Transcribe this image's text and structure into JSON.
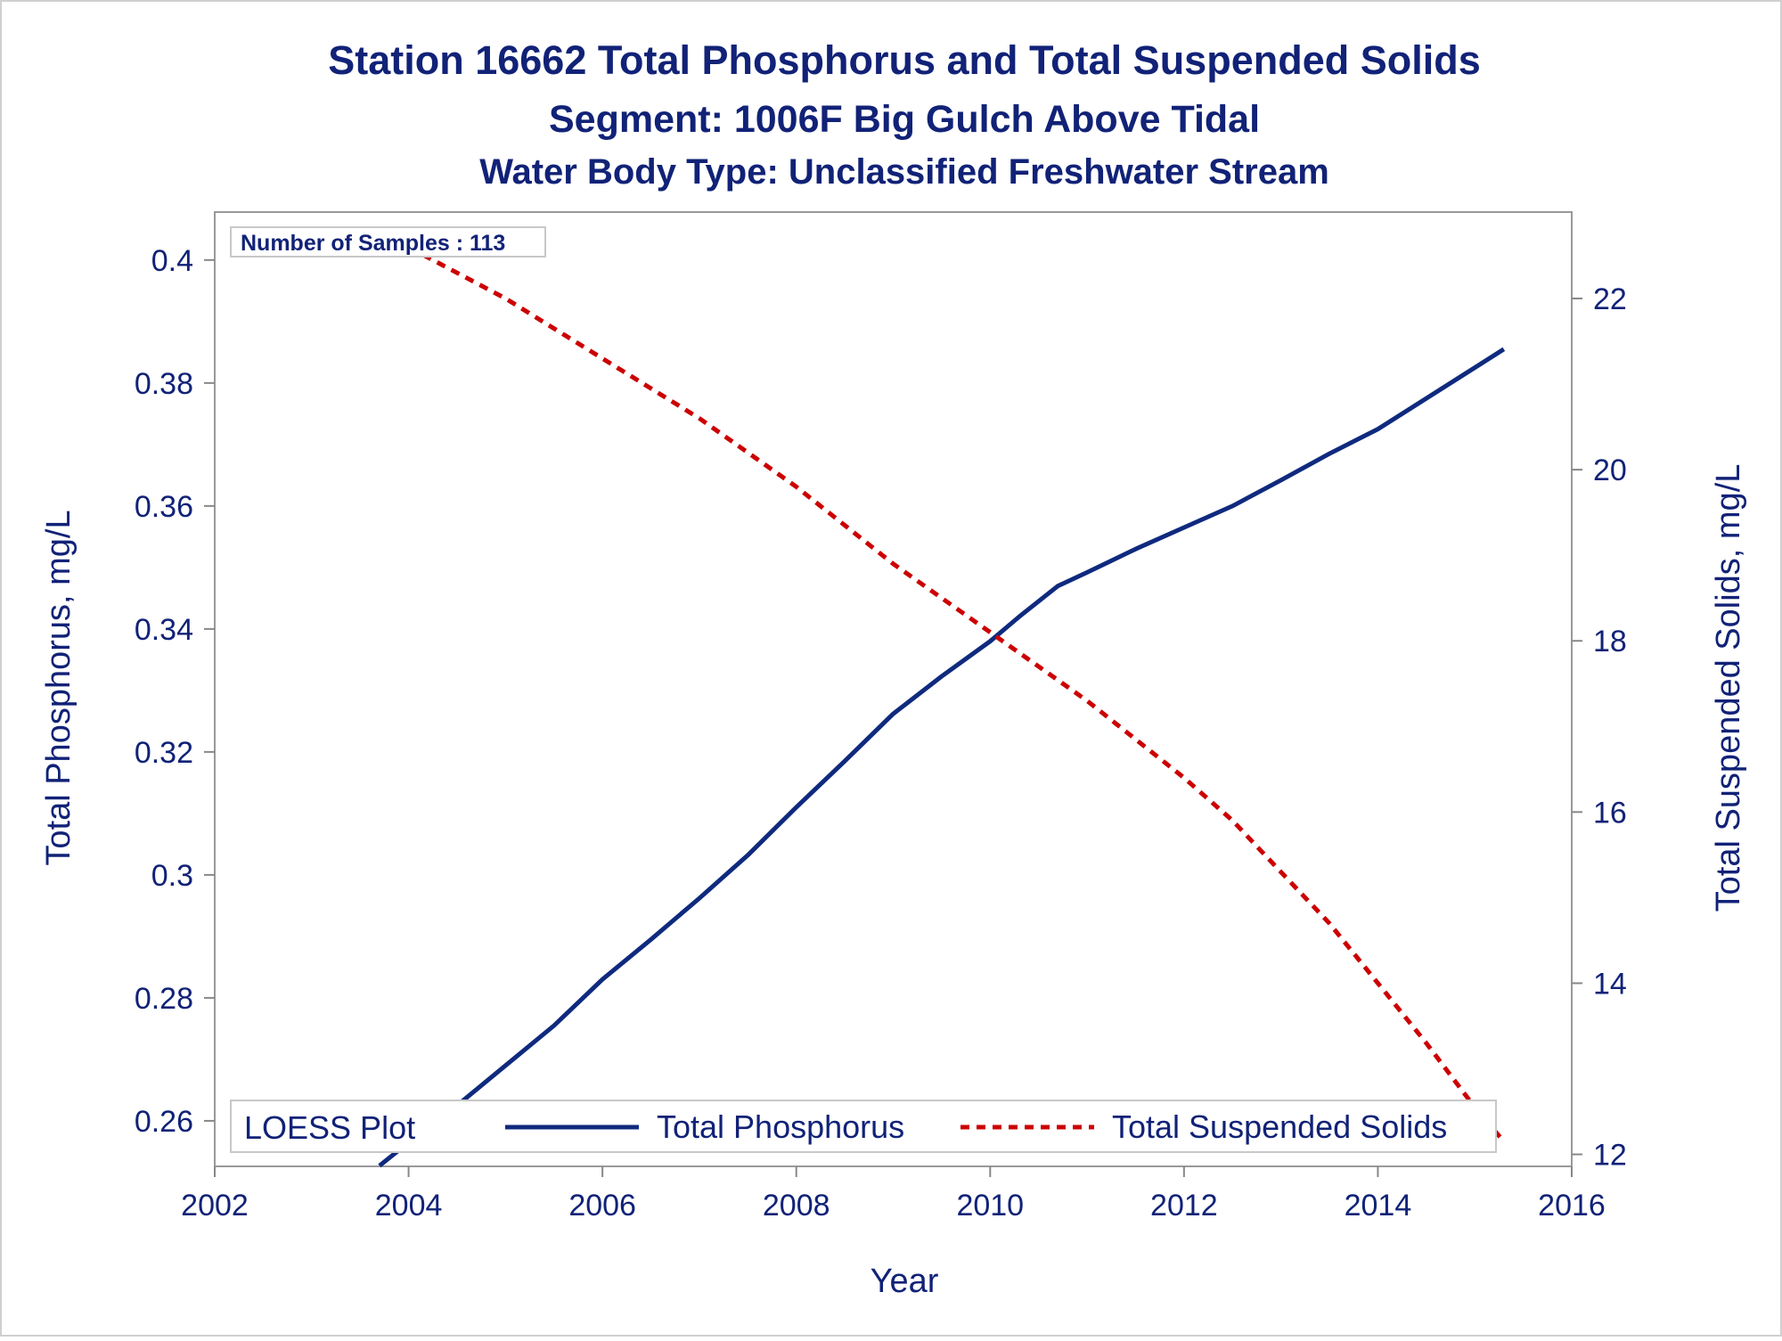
{
  "chart_data": {
    "type": "line",
    "title": "Station 16662  Total Phosphorus and Total Suspended Solids",
    "subtitle": "Segment: 1006F  Big Gulch Above Tidal",
    "subtitle2": "Water Body Type: Unclassified Freshwater Stream",
    "xlabel": "Year",
    "ylabel_left": "Total Phosphorus, mg/L",
    "ylabel_right": "Total Suspended Solids, mg/L",
    "xlim": [
      2002,
      2016
    ],
    "ylim_left": [
      0.2526,
      0.4078
    ],
    "ylim_right": [
      11.86,
      23.01
    ],
    "x_ticks": [
      2002,
      2004,
      2006,
      2008,
      2010,
      2012,
      2014,
      2016
    ],
    "x_tick_labels": [
      "2002",
      "2004",
      "2006",
      "2008",
      "2010",
      "2012",
      "2014",
      "2016"
    ],
    "y_ticks_left": [
      0.26,
      0.28,
      0.3,
      0.32,
      0.34,
      0.36,
      0.38,
      0.4
    ],
    "y_tick_labels_left": [
      "0.26",
      "0.28",
      "0.3",
      "0.32",
      "0.34",
      "0.36",
      "0.38",
      "0.4"
    ],
    "y_ticks_right": [
      12,
      14,
      16,
      18,
      20,
      22
    ],
    "y_tick_labels_right": [
      "12",
      "14",
      "16",
      "18",
      "20",
      "22"
    ],
    "annotation": "Number of Samples : 113",
    "legend": {
      "title": "LOESS Plot",
      "placement": "bottom-inside",
      "entries": [
        "Total Phosphorus",
        "Total Suspended Solids"
      ]
    },
    "grid": false,
    "series": [
      {
        "name": "Total Phosphorus",
        "axis": "left",
        "color": "#0f2a7e",
        "style": "solid",
        "x": [
          2003.7,
          2004.0,
          2004.5,
          2005.0,
          2005.5,
          2006.0,
          2006.5,
          2007.0,
          2007.5,
          2008.0,
          2008.5,
          2009.0,
          2009.5,
          2010.0,
          2010.3,
          2010.7,
          2011.0,
          2011.5,
          2012.0,
          2012.5,
          2013.0,
          2013.5,
          2014.0,
          2014.5,
          2015.0,
          2015.3
        ],
        "y": [
          0.2527,
          0.2565,
          0.2625,
          0.269,
          0.2755,
          0.283,
          0.2895,
          0.2962,
          0.3032,
          0.311,
          0.3185,
          0.3262,
          0.3323,
          0.338,
          0.342,
          0.347,
          0.3492,
          0.353,
          0.3565,
          0.36,
          0.3642,
          0.3685,
          0.3725,
          0.3775,
          0.3825,
          0.3855
        ]
      },
      {
        "name": "Total Suspended Solids",
        "axis": "right",
        "color": "#cc0000",
        "style": "dashed",
        "x": [
          2003.7,
          2004.0,
          2005.0,
          2006.0,
          2007.0,
          2008.0,
          2009.0,
          2010.0,
          2010.5,
          2011.0,
          2011.5,
          2012.0,
          2012.5,
          2013.0,
          2013.5,
          2014.0,
          2014.5,
          2015.0,
          2015.3
        ],
        "y": [
          22.75,
          22.6,
          22.0,
          21.3,
          20.6,
          19.8,
          18.9,
          18.1,
          17.7,
          17.3,
          16.85,
          16.4,
          15.9,
          15.3,
          14.7,
          14.0,
          13.3,
          12.55,
          12.15
        ]
      }
    ]
  }
}
